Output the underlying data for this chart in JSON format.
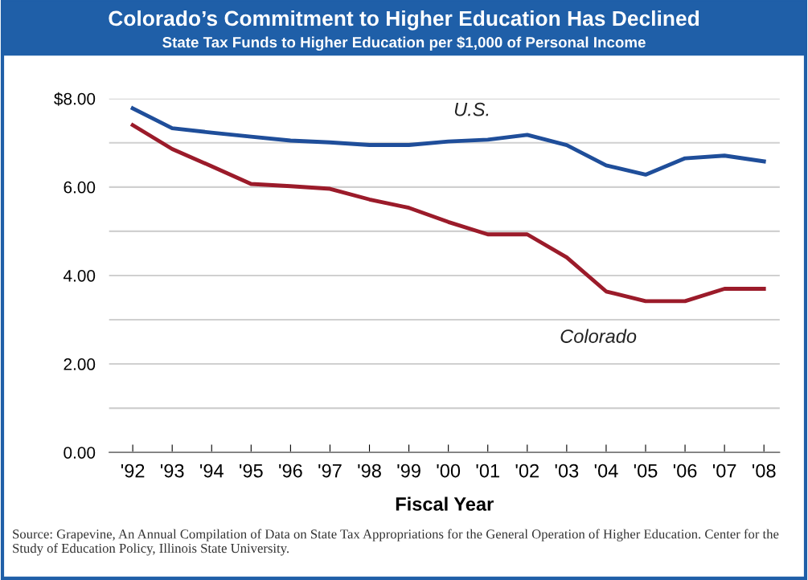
{
  "chart_data": {
    "type": "line",
    "title": "Colorado’s Commitment to Higher Education Has Declined",
    "subtitle": "State Tax Funds to Higher Education per $1,000 of Personal Income",
    "xlabel": "Fiscal Year",
    "categories": [
      "'92",
      "'93",
      "'94",
      "'95",
      "'96",
      "'97",
      "'98",
      "'99",
      "'00",
      "'01",
      "'02",
      "'03",
      "'04",
      "'05",
      "'06",
      "'07",
      "'08"
    ],
    "series": [
      {
        "name": "U.S.",
        "color": "#1f4e9a",
        "values": [
          7.78,
          7.33,
          7.23,
          7.14,
          7.05,
          7.01,
          6.95,
          6.95,
          7.03,
          7.07,
          7.18,
          6.95,
          6.49,
          6.28,
          6.65,
          6.71,
          6.58
        ]
      },
      {
        "name": "Colorado",
        "color": "#9b1b2a",
        "values": [
          7.4,
          6.86,
          6.47,
          6.07,
          6.02,
          5.96,
          5.72,
          5.53,
          5.21,
          4.93,
          4.93,
          4.41,
          3.64,
          3.42,
          3.42,
          3.7,
          3.7
        ]
      }
    ],
    "ylim": [
      0,
      8
    ],
    "yticks": [
      {
        "value": 0,
        "label": "0.00"
      },
      {
        "value": 1,
        "label": null
      },
      {
        "value": 2,
        "label": "2.00"
      },
      {
        "value": 3,
        "label": null
      },
      {
        "value": 4,
        "label": "4.00"
      },
      {
        "value": 5,
        "label": null
      },
      {
        "value": 6,
        "label": "6.00"
      },
      {
        "value": 7,
        "label": null
      },
      {
        "value": 8,
        "label": "$8.00"
      }
    ],
    "grid": "y",
    "legend": false,
    "marker": "none",
    "line_style": "solid",
    "annotations": [
      "Source: Grapevine, An Annual Compilation of Data on State Tax Appropriations for the General Operation of Higher Education. Center for the Study of Education Policy, Illinois State University."
    ]
  }
}
